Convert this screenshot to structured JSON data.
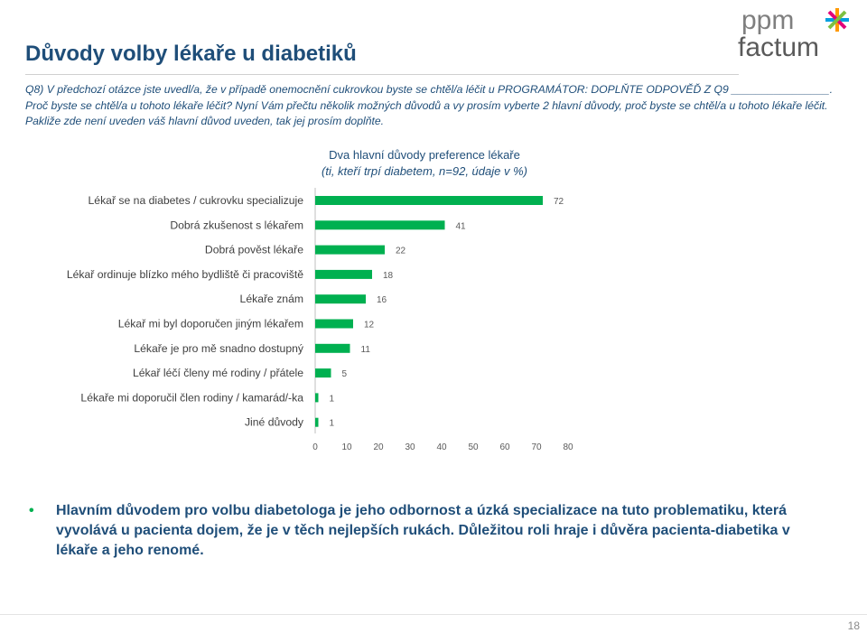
{
  "page": {
    "title": "Důvody volby lékaře u diabetiků",
    "question": "Q8) V předchozí otázce jste uvedl/a, že v případě onemocnění cukrovkou byste se chtěl/a léčit u PROGRAMÁTOR: DOPLŇTE ODPOVĚĎ Z Q9 ________________. Proč byste se chtěl/a u tohoto lékaře léčit? Nyní Vám přečtu několik možných důvodů a vy prosím vyberte 2 hlavní důvody, proč byste se chtěl/a u tohoto lékaře léčit. Pakliže zde není uveden váš hlavní důvod uveden, tak jej prosím doplňte.",
    "summary": "Hlavním důvodem pro volbu diabetologa je jeho odbornost a úzká specializace na tuto problematiku, která vyvolává u pacienta dojem, že je v těch nejlepších rukách. Důležitou roli hraje i důvěra pacienta-diabetika v lékaře a jeho renomé.",
    "page_number": "18",
    "logo_line1": "ppm",
    "logo_line2": "factum"
  },
  "chart_data": {
    "type": "bar",
    "orientation": "horizontal",
    "title": "Dva hlavní důvody preference lékaře",
    "subtitle": "(ti, kteří trpí diabetem, n=92, údaje v %)",
    "categories": [
      "Lékař se na diabetes / cukrovku specializuje",
      "Dobrá zkušenost s lékařem",
      "Dobrá pověst lékaře",
      "Lékař ordinuje blízko mého bydliště či pracoviště",
      "Lékaře znám",
      "Lékař mi byl doporučen jiným lékařem",
      "Lékaře je pro mě snadno dostupný",
      "Lékař léčí členy mé rodiny / přátele",
      "Lékaře mi doporučil člen rodiny / kamarád/-ka",
      "Jiné důvody"
    ],
    "values": [
      72,
      41,
      22,
      18,
      16,
      12,
      11,
      5,
      1,
      1
    ],
    "xlim": [
      0,
      80
    ],
    "ticks": [
      0,
      10,
      20,
      30,
      40,
      50,
      60,
      70,
      80
    ],
    "bar_color": "#00b050",
    "grid": false,
    "legend": "none"
  }
}
